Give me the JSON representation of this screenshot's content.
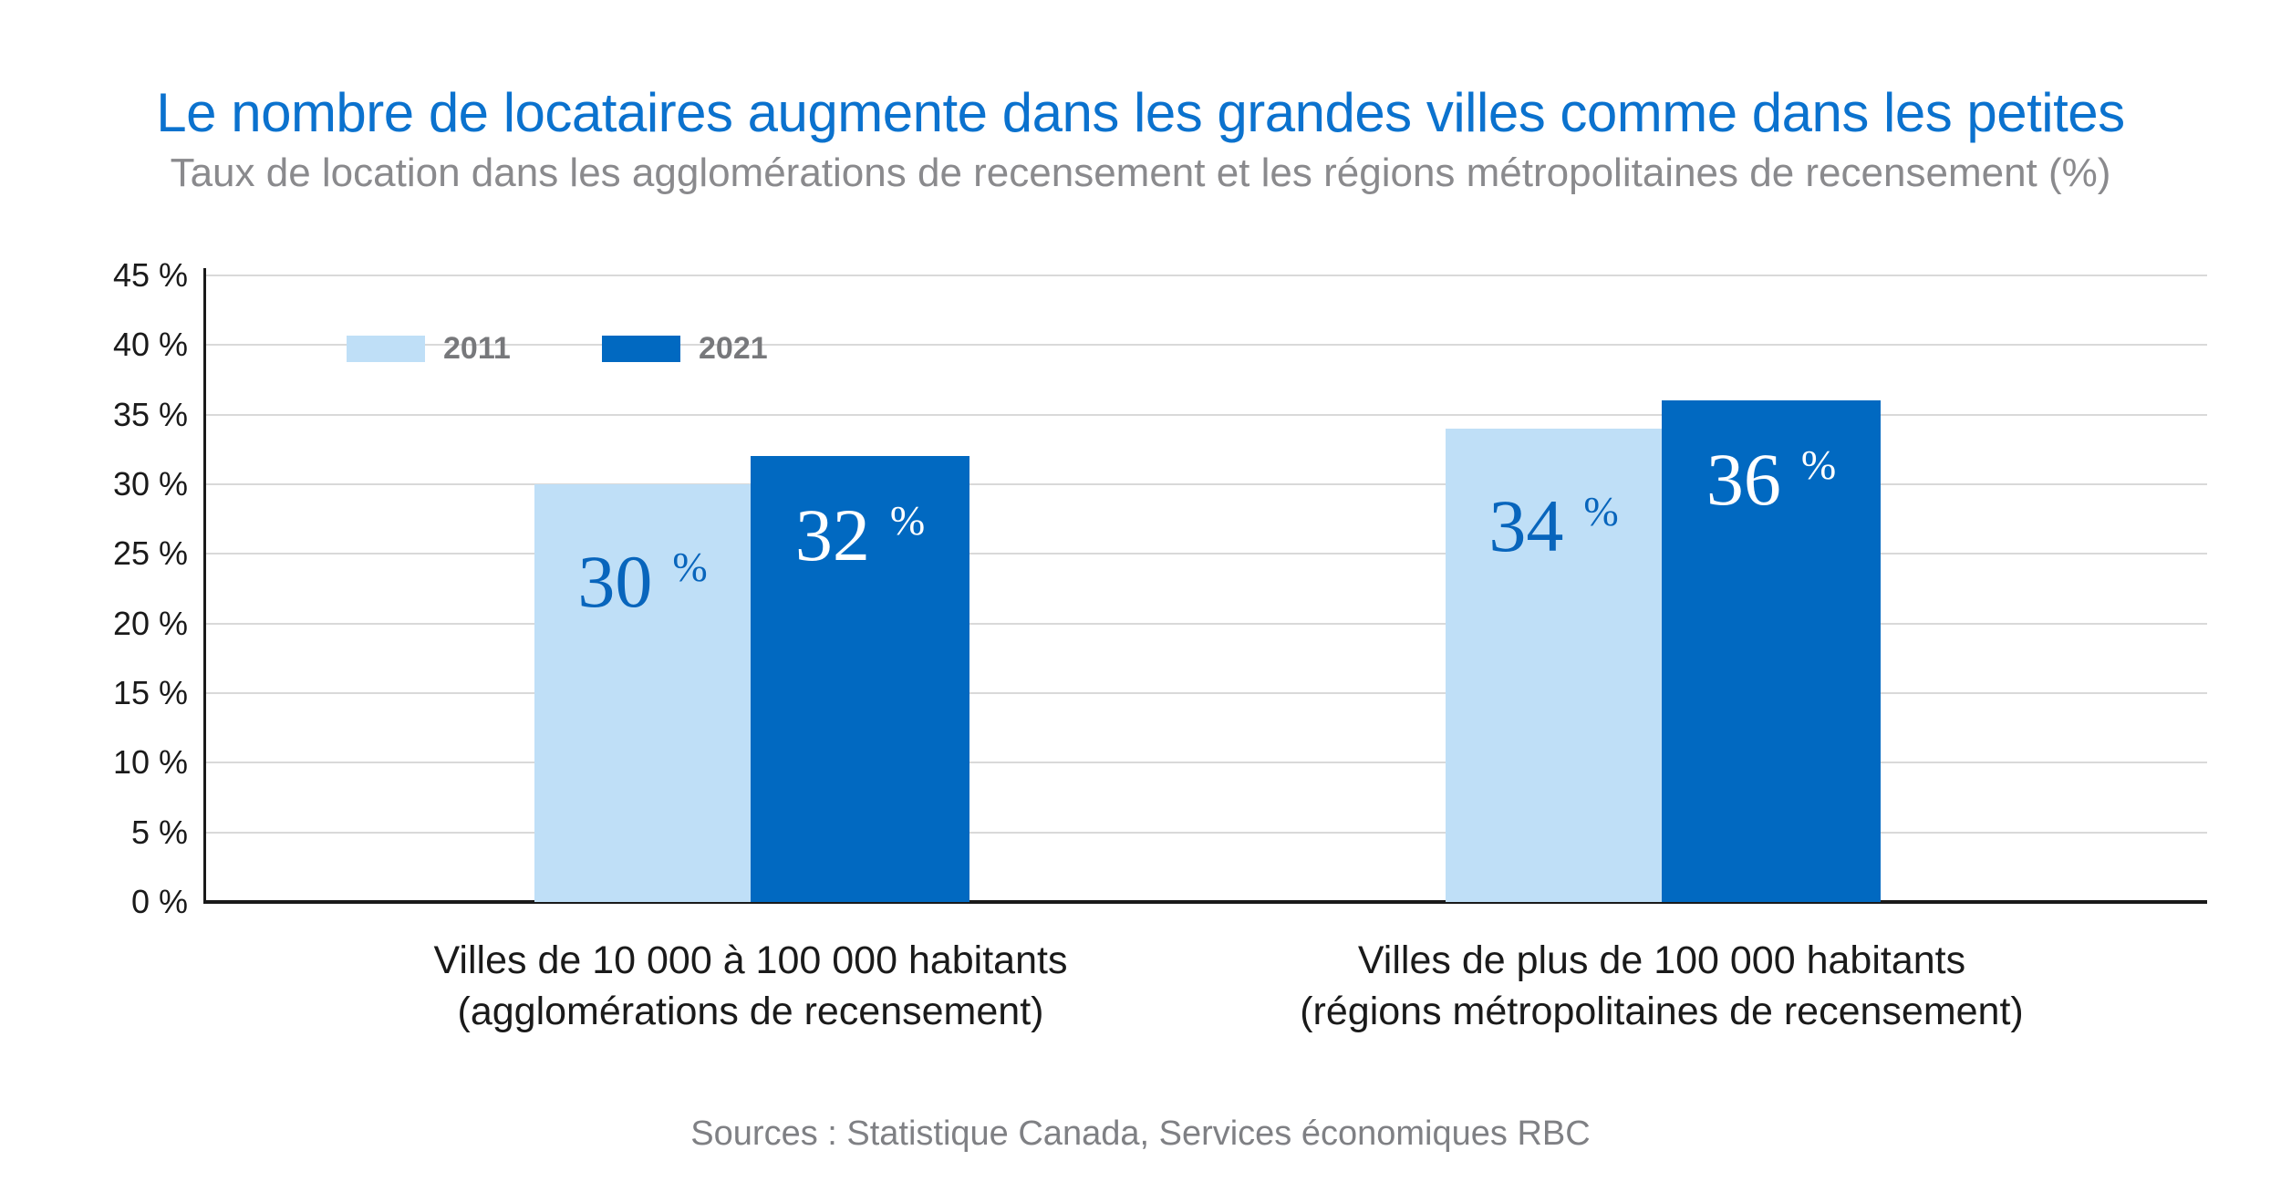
{
  "header": {
    "title": "Le nombre de locataires augmente dans les grandes villes comme dans les petites",
    "subtitle": "Taux de location dans les agglomérations de recensement et les régions métropolitaines de recensement (%)"
  },
  "colors": {
    "title_blue": "#0B72CE",
    "series_2011_light_blue": "#BFDFF7",
    "series_2021_dark_blue": "#0169C1",
    "value_label_on_light": "#0865BC",
    "value_label_on_dark": "#FFFFFF",
    "gridline_gray": "#D9D9D9",
    "axis_black": "#1A1A1A",
    "legend_text_gray": "#77787B",
    "subtitle_gray": "#8A8A8D",
    "source_gray": "#7F8084"
  },
  "chart_data": {
    "type": "bar",
    "title": "Taux de location dans les agglomérations de recensement et les régions métropolitaines de recensement (%)",
    "categories": [
      {
        "line1": "Villes de 10 000 à 100 000 habitants",
        "line2": "(agglomérations de recensement)"
      },
      {
        "line1": "Villes de plus de 100 000 habitants",
        "line2": "(régions métropolitaines de recensement)"
      }
    ],
    "series": [
      {
        "name": "2011",
        "values": [
          30,
          34
        ],
        "color": "#BFDFF7",
        "label_color": "#0865BC"
      },
      {
        "name": "2021",
        "values": [
          32,
          36
        ],
        "color": "#0169C1",
        "label_color": "#FFFFFF"
      }
    ],
    "value_suffix": "%",
    "yticks": [
      45,
      40,
      35,
      30,
      25,
      20,
      15,
      10,
      5,
      0
    ],
    "ytick_suffix": " %",
    "ylim": [
      0,
      45
    ],
    "grid": true,
    "legend_position": "top-left-inside",
    "xlabel": "",
    "ylabel": ""
  },
  "footer": {
    "source": "Sources : Statistique Canada, Services économiques RBC"
  }
}
